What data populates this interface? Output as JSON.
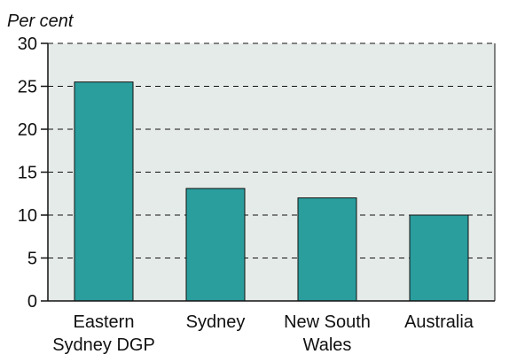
{
  "chart_data": {
    "type": "bar",
    "ylabel": "Per cent",
    "categories": [
      [
        "Eastern",
        "Sydney DGP"
      ],
      [
        "Sydney"
      ],
      [
        "New South",
        "Wales"
      ],
      [
        "Australia"
      ]
    ],
    "values": [
      25.5,
      13.1,
      12.0,
      10.0
    ],
    "ylim": [
      0,
      30
    ],
    "yticks": [
      0,
      5,
      10,
      15,
      20,
      25,
      30
    ],
    "grid": true,
    "colors": {
      "bar": "#2a9d9d",
      "plot_background": "#e5ebe8",
      "axis": "#111111",
      "grid": "#111111"
    }
  }
}
